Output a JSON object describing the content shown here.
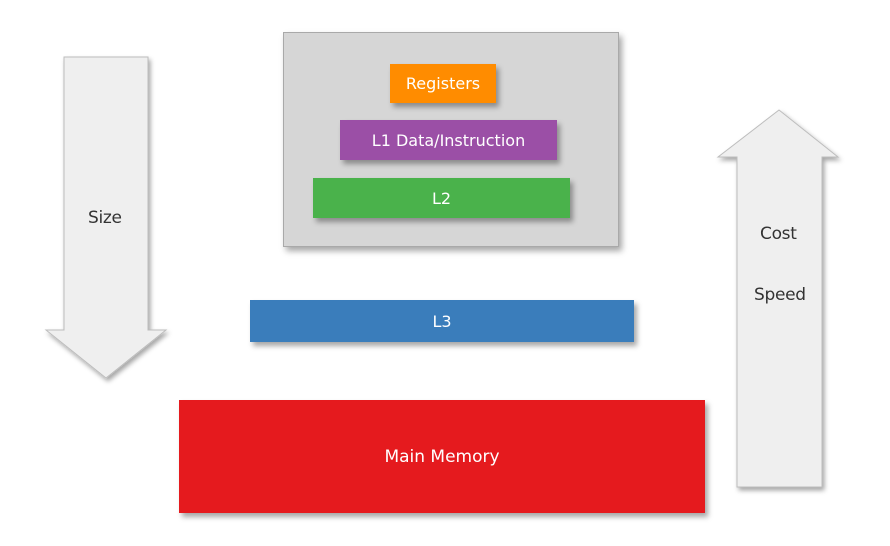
{
  "arrows": {
    "down_label": "Size",
    "up_label_1": "Cost",
    "up_label_2": "Speed"
  },
  "levels": {
    "registers": "Registers",
    "l1": "L1 Data/Instruction",
    "l2": "L2",
    "l3": "L3",
    "main_memory": "Main Memory"
  },
  "colors": {
    "registers": "#ff8c00",
    "l1": "#9b4fa6",
    "l2": "#4ab24b",
    "l3": "#3a7dbb",
    "main_memory": "#e51a1e",
    "cpu_box": "#d6d6d6",
    "arrow_fill": "#efefef"
  }
}
